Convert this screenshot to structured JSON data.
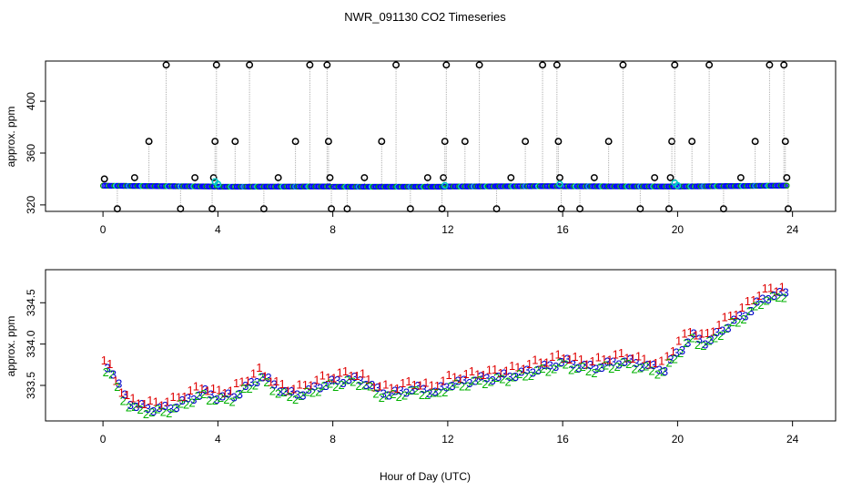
{
  "figure": {
    "title": "NWR_091130  CO2 Timeseries",
    "xlabel": "Hour of Day (UTC)"
  },
  "colors": {
    "axis": "#000000",
    "flag_circle": "#000000",
    "flag_line": "#9a9a9a",
    "series_blue": "#0000ff",
    "series_green": "#00a000",
    "series_cyan": "#00c8c8",
    "pt_1": "#e00000",
    "pt_2": "#00b000",
    "pt_3": "#0000cc"
  },
  "chart_data": [
    {
      "type": "scatter",
      "panel": "top",
      "ylabel": "approx. ppm",
      "xlim": [
        -2,
        25.5
      ],
      "ylim": [
        315,
        431
      ],
      "xticks": [
        0,
        4,
        8,
        12,
        16,
        20,
        24
      ],
      "yticks": [
        320,
        360,
        400
      ],
      "baseline_segments": [
        {
          "x0": 0.0,
          "x1": 3.9,
          "y0": 334.8,
          "y1": 334.2
        },
        {
          "x0": 4.0,
          "x1": 7.9,
          "y0": 334.0,
          "y1": 334.2
        },
        {
          "x0": 8.0,
          "x1": 11.9,
          "y0": 334.0,
          "y1": 334.0
        },
        {
          "x0": 12.0,
          "x1": 15.9,
          "y0": 334.2,
          "y1": 334.5
        },
        {
          "x0": 16.0,
          "x1": 19.9,
          "y0": 334.4,
          "y1": 334.2
        },
        {
          "x0": 20.0,
          "x1": 23.8,
          "y0": 334.2,
          "y1": 334.9
        }
      ],
      "cyan_marks": [
        {
          "x": 3.9,
          "y": 338
        },
        {
          "x": 4.0,
          "y": 336
        },
        {
          "x": 11.9,
          "y": 335
        },
        {
          "x": 15.9,
          "y": 336
        },
        {
          "x": 19.9,
          "y": 337
        },
        {
          "x": 20.0,
          "y": 335
        }
      ],
      "flag_points": [
        {
          "x": 0.05,
          "y": 340
        },
        {
          "x": 0.5,
          "y": 317
        },
        {
          "x": 1.1,
          "y": 341
        },
        {
          "x": 1.6,
          "y": 369
        },
        {
          "x": 2.2,
          "y": 428
        },
        {
          "x": 2.7,
          "y": 317
        },
        {
          "x": 3.2,
          "y": 341
        },
        {
          "x": 3.8,
          "y": 317
        },
        {
          "x": 3.85,
          "y": 341
        },
        {
          "x": 3.9,
          "y": 369
        },
        {
          "x": 3.95,
          "y": 428
        },
        {
          "x": 4.6,
          "y": 369
        },
        {
          "x": 5.1,
          "y": 428
        },
        {
          "x": 5.6,
          "y": 317
        },
        {
          "x": 6.1,
          "y": 341
        },
        {
          "x": 6.7,
          "y": 369
        },
        {
          "x": 7.2,
          "y": 428
        },
        {
          "x": 7.8,
          "y": 428
        },
        {
          "x": 7.85,
          "y": 369
        },
        {
          "x": 7.9,
          "y": 341
        },
        {
          "x": 7.95,
          "y": 317
        },
        {
          "x": 8.5,
          "y": 317
        },
        {
          "x": 9.1,
          "y": 341
        },
        {
          "x": 9.7,
          "y": 369
        },
        {
          "x": 10.2,
          "y": 428
        },
        {
          "x": 10.7,
          "y": 317
        },
        {
          "x": 11.3,
          "y": 341
        },
        {
          "x": 11.8,
          "y": 317
        },
        {
          "x": 11.85,
          "y": 341
        },
        {
          "x": 11.9,
          "y": 369
        },
        {
          "x": 11.95,
          "y": 428
        },
        {
          "x": 12.6,
          "y": 369
        },
        {
          "x": 13.1,
          "y": 428
        },
        {
          "x": 13.7,
          "y": 317
        },
        {
          "x": 14.2,
          "y": 341
        },
        {
          "x": 14.7,
          "y": 369
        },
        {
          "x": 15.3,
          "y": 428
        },
        {
          "x": 15.8,
          "y": 428
        },
        {
          "x": 15.85,
          "y": 369
        },
        {
          "x": 15.9,
          "y": 341
        },
        {
          "x": 15.95,
          "y": 317
        },
        {
          "x": 16.6,
          "y": 317
        },
        {
          "x": 17.1,
          "y": 341
        },
        {
          "x": 17.6,
          "y": 369
        },
        {
          "x": 18.1,
          "y": 428
        },
        {
          "x": 18.7,
          "y": 317
        },
        {
          "x": 19.2,
          "y": 341
        },
        {
          "x": 19.7,
          "y": 317
        },
        {
          "x": 19.75,
          "y": 341
        },
        {
          "x": 19.8,
          "y": 369
        },
        {
          "x": 19.9,
          "y": 428
        },
        {
          "x": 20.5,
          "y": 369
        },
        {
          "x": 21.1,
          "y": 428
        },
        {
          "x": 21.6,
          "y": 317
        },
        {
          "x": 22.2,
          "y": 341
        },
        {
          "x": 22.7,
          "y": 369
        },
        {
          "x": 23.2,
          "y": 428
        },
        {
          "x": 23.7,
          "y": 428
        },
        {
          "x": 23.75,
          "y": 369
        },
        {
          "x": 23.8,
          "y": 341
        },
        {
          "x": 23.85,
          "y": 317
        }
      ]
    },
    {
      "type": "scatter",
      "panel": "bottom",
      "ylabel": "approx. ppm",
      "xlim": [
        -2,
        25.5
      ],
      "ylim": [
        333.07,
        334.9
      ],
      "xticks": [
        0,
        4,
        8,
        12,
        16,
        20,
        24
      ],
      "yticks": [
        333.5,
        334.0,
        334.5
      ],
      "point_labels": [
        "1",
        "2",
        "3"
      ],
      "series": [
        {
          "name": "1",
          "offset": 0.07
        },
        {
          "name": "2",
          "offset": -0.04
        },
        {
          "name": "3",
          "offset": 0.0
        }
      ],
      "mean_curve": [
        {
          "x": 0.0,
          "y": 333.78
        },
        {
          "x": 0.3,
          "y": 333.66
        },
        {
          "x": 0.6,
          "y": 333.42
        },
        {
          "x": 1.0,
          "y": 333.26
        },
        {
          "x": 1.5,
          "y": 333.23
        },
        {
          "x": 2.0,
          "y": 333.22
        },
        {
          "x": 2.5,
          "y": 333.26
        },
        {
          "x": 3.0,
          "y": 333.35
        },
        {
          "x": 3.5,
          "y": 333.42
        },
        {
          "x": 4.0,
          "y": 333.36
        },
        {
          "x": 4.5,
          "y": 333.38
        },
        {
          "x": 5.0,
          "y": 333.5
        },
        {
          "x": 5.5,
          "y": 333.62
        },
        {
          "x": 6.0,
          "y": 333.48
        },
        {
          "x": 6.5,
          "y": 333.4
        },
        {
          "x": 7.0,
          "y": 333.42
        },
        {
          "x": 7.5,
          "y": 333.5
        },
        {
          "x": 8.0,
          "y": 333.55
        },
        {
          "x": 8.5,
          "y": 333.58
        },
        {
          "x": 9.0,
          "y": 333.57
        },
        {
          "x": 9.5,
          "y": 333.45
        },
        {
          "x": 10.0,
          "y": 333.4
        },
        {
          "x": 10.5,
          "y": 333.45
        },
        {
          "x": 11.0,
          "y": 333.47
        },
        {
          "x": 11.5,
          "y": 333.42
        },
        {
          "x": 12.0,
          "y": 333.52
        },
        {
          "x": 12.5,
          "y": 333.55
        },
        {
          "x": 13.0,
          "y": 333.58
        },
        {
          "x": 13.5,
          "y": 333.6
        },
        {
          "x": 14.0,
          "y": 333.62
        },
        {
          "x": 14.5,
          "y": 333.65
        },
        {
          "x": 15.0,
          "y": 333.7
        },
        {
          "x": 15.5,
          "y": 333.74
        },
        {
          "x": 16.0,
          "y": 333.8
        },
        {
          "x": 16.5,
          "y": 333.75
        },
        {
          "x": 17.0,
          "y": 333.72
        },
        {
          "x": 17.5,
          "y": 333.76
        },
        {
          "x": 18.0,
          "y": 333.8
        },
        {
          "x": 18.5,
          "y": 333.78
        },
        {
          "x": 19.0,
          "y": 333.73
        },
        {
          "x": 19.5,
          "y": 333.7
        },
        {
          "x": 20.0,
          "y": 333.93
        },
        {
          "x": 20.5,
          "y": 334.1
        },
        {
          "x": 21.0,
          "y": 334.02
        },
        {
          "x": 21.5,
          "y": 334.18
        },
        {
          "x": 22.0,
          "y": 334.3
        },
        {
          "x": 22.5,
          "y": 334.42
        },
        {
          "x": 23.0,
          "y": 334.58
        },
        {
          "x": 23.5,
          "y": 334.6
        },
        {
          "x": 23.8,
          "y": 334.66
        }
      ],
      "sampling": {
        "x_start": 0.1,
        "x_end": 23.8,
        "step": 0.2
      }
    }
  ]
}
